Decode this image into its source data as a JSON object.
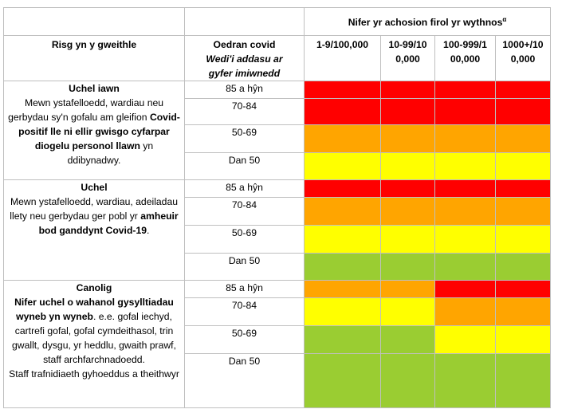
{
  "header": {
    "nifer_label": "Nifer yr achosion firol yr wythnos",
    "nifer_sup": "α",
    "risk_col": "Risg yn y gweithle",
    "age_col_title": "Oedran covid",
    "age_col_sub": "Wedi'i addasu ar gyfer imiwnedd",
    "rate_cols": [
      "1-9/100,000",
      "10-99/100,000",
      "100-999/100,000",
      "1000+/100,000"
    ]
  },
  "groups": [
    {
      "risk_title": "Uchel iawn",
      "desc_parts": [
        {
          "t": "Mewn ystafelloedd, wardiau neu gerbydau sy'n gofalu am gleifion ",
          "b": false
        },
        {
          "t": "Covid-positif lle ni ellir gwisgo cyfarpar diogelu personol llawn",
          "b": true
        },
        {
          "t": " yn ddibynadwy.",
          "b": false
        }
      ],
      "rows": [
        {
          "age": "85 a hŷn",
          "colors": [
            "red",
            "red",
            "red",
            "red"
          ]
        },
        {
          "age": "70-84",
          "colors": [
            "red",
            "red",
            "red",
            "red"
          ]
        },
        {
          "age": "50-69",
          "colors": [
            "orange",
            "orange",
            "orange",
            "orange"
          ]
        },
        {
          "age": "Dan 50",
          "colors": [
            "yellow",
            "yellow",
            "yellow",
            "yellow"
          ]
        }
      ]
    },
    {
      "risk_title": "Uchel",
      "desc_parts": [
        {
          "t": "Mewn ystafelloedd, wardiau, adeiladau llety neu gerbydau ger pobl yr ",
          "b": false
        },
        {
          "t": "amheuir bod ganddynt Covid-19",
          "b": true
        },
        {
          "t": ".",
          "b": false
        }
      ],
      "rows": [
        {
          "age": "85 a hŷn",
          "colors": [
            "red",
            "red",
            "red",
            "red"
          ]
        },
        {
          "age": "70-84",
          "colors": [
            "orange",
            "orange",
            "orange",
            "orange"
          ]
        },
        {
          "age": "50-69",
          "colors": [
            "yellow",
            "yellow",
            "yellow",
            "yellow"
          ]
        },
        {
          "age": "Dan 50",
          "colors": [
            "green",
            "green",
            "green",
            "green"
          ]
        }
      ]
    },
    {
      "risk_title": "Canolig",
      "desc_parts": [
        {
          "t": "Nifer uchel o wahanol gysylltiadau wyneb yn wyneb",
          "b": true
        },
        {
          "t": ". e.e. gofal iechyd, cartrefi gofal, gofal cymdeithasol, trin gwallt, dysgu, yr heddlu, gwaith prawf, staff archfarchnadoedd.",
          "b": false
        }
      ],
      "extra": "Staff trafnidiaeth gyhoeddus a theithwyr",
      "rows": [
        {
          "age": "85 a hŷn",
          "colors": [
            "orange",
            "orange",
            "red",
            "red"
          ]
        },
        {
          "age": "70-84",
          "colors": [
            "yellow",
            "yellow",
            "orange",
            "orange"
          ]
        },
        {
          "age": "50-69",
          "colors": [
            "green",
            "green",
            "yellow",
            "yellow"
          ]
        },
        {
          "age": "Dan 50",
          "colors": [
            "green",
            "green",
            "green",
            "green"
          ]
        }
      ]
    }
  ],
  "colors": {
    "red": "#ff0000",
    "orange": "#ffa500",
    "yellow": "#ffff00",
    "green": "#9acd32"
  }
}
